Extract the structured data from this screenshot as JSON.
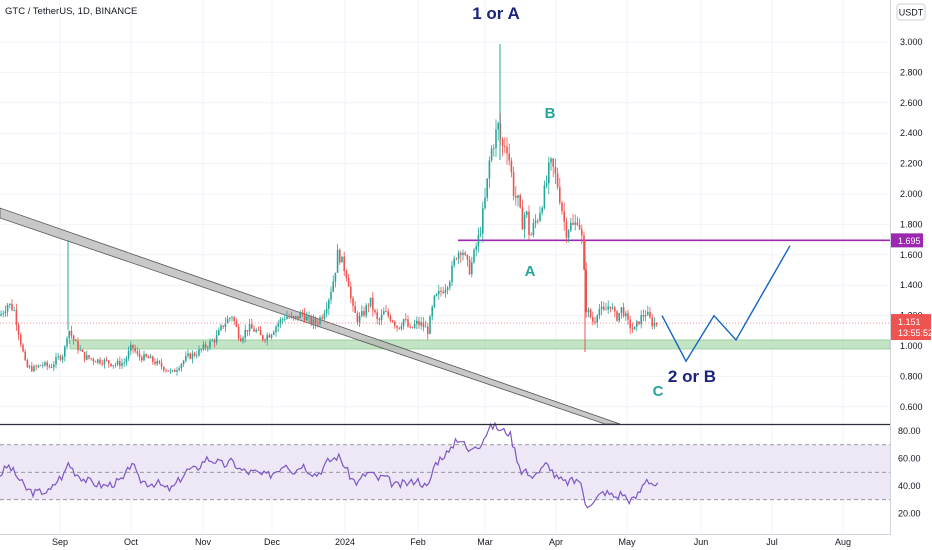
{
  "header": {
    "title": "GTC / TetherUS, 1D, BINANCE",
    "currency_button": "USDT"
  },
  "colors": {
    "up": "#26a69a",
    "down": "#ef5350",
    "level": "#9c27b0",
    "projection": "#1565c0",
    "zone": "#a5d6a7",
    "channel": "#b0b0b0",
    "rsi": "#7e57c2",
    "rsi_band": "#ede7f6",
    "label_dark": "#1a237e",
    "label_teal": "#26a69a"
  },
  "chart_data": [
    {
      "type": "candlestick",
      "title": "GTC / TetherUS, 1D, BINANCE",
      "ylim": [
        0.5,
        3.2
      ],
      "y_ticks": [
        "3.000",
        "2.800",
        "2.600",
        "2.400",
        "2.200",
        "2.000",
        "1.800",
        "1.600",
        "1.400",
        "1.200",
        "1.000",
        "0.800",
        "0.600"
      ],
      "x_ticks": [
        "Sep",
        "Oct",
        "Nov",
        "Dec",
        "2024",
        "Feb",
        "Mar",
        "Apr",
        "May",
        "Jun",
        "Jul",
        "Aug"
      ],
      "price_path": [
        [
          0,
          1.2
        ],
        [
          8,
          1.28
        ],
        [
          14,
          1.24
        ],
        [
          20,
          1.05
        ],
        [
          26,
          0.86
        ],
        [
          34,
          0.85
        ],
        [
          42,
          0.88
        ],
        [
          50,
          0.86
        ],
        [
          58,
          0.92
        ],
        [
          64,
          0.95
        ],
        [
          68,
          1.12
        ],
        [
          75,
          1.02
        ],
        [
          84,
          0.93
        ],
        [
          94,
          0.91
        ],
        [
          104,
          0.9
        ],
        [
          114,
          0.88
        ],
        [
          124,
          0.89
        ],
        [
          132,
          1.0
        ],
        [
          138,
          0.93
        ],
        [
          148,
          0.92
        ],
        [
          158,
          0.88
        ],
        [
          166,
          0.85
        ],
        [
          172,
          0.82
        ],
        [
          180,
          0.88
        ],
        [
          188,
          0.93
        ],
        [
          196,
          0.95
        ],
        [
          206,
          1.0
        ],
        [
          216,
          1.05
        ],
        [
          224,
          1.15
        ],
        [
          232,
          1.2
        ],
        [
          240,
          1.05
        ],
        [
          248,
          1.12
        ],
        [
          256,
          1.1
        ],
        [
          262,
          1.05
        ],
        [
          270,
          1.08
        ],
        [
          278,
          1.15
        ],
        [
          286,
          1.2
        ],
        [
          294,
          1.17
        ],
        [
          302,
          1.22
        ],
        [
          308,
          1.17
        ],
        [
          316,
          1.15
        ],
        [
          322,
          1.2
        ],
        [
          328,
          1.3
        ],
        [
          334,
          1.45
        ],
        [
          338,
          1.62
        ],
        [
          342,
          1.55
        ],
        [
          348,
          1.45
        ],
        [
          352,
          1.25
        ],
        [
          358,
          1.17
        ],
        [
          364,
          1.22
        ],
        [
          370,
          1.3
        ],
        [
          378,
          1.15
        ],
        [
          384,
          1.22
        ],
        [
          392,
          1.18
        ],
        [
          398,
          1.12
        ],
        [
          404,
          1.18
        ],
        [
          410,
          1.1
        ],
        [
          416,
          1.15
        ],
        [
          422,
          1.14
        ],
        [
          428,
          1.1
        ],
        [
          434,
          1.3
        ],
        [
          440,
          1.35
        ],
        [
          446,
          1.4
        ],
        [
          450,
          1.45
        ],
        [
          456,
          1.6
        ],
        [
          462,
          1.65
        ],
        [
          466,
          1.55
        ],
        [
          470,
          1.5
        ],
        [
          474,
          1.6
        ],
        [
          480,
          1.75
        ],
        [
          486,
          2.0
        ],
        [
          490,
          2.25
        ],
        [
          494,
          2.35
        ],
        [
          498,
          2.45
        ],
        [
          502,
          2.3
        ],
        [
          506,
          2.35
        ],
        [
          510,
          2.2
        ],
        [
          514,
          2.0
        ],
        [
          518,
          1.95
        ],
        [
          522,
          1.8
        ],
        [
          526,
          1.9
        ],
        [
          530,
          1.7
        ],
        [
          534,
          1.8
        ],
        [
          538,
          1.85
        ],
        [
          542,
          1.95
        ],
        [
          546,
          2.05
        ],
        [
          550,
          2.2
        ],
        [
          554,
          2.15
        ],
        [
          558,
          2.05
        ],
        [
          562,
          1.9
        ],
        [
          566,
          1.75
        ],
        [
          570,
          1.8
        ],
        [
          574,
          1.78
        ],
        [
          578,
          1.85
        ],
        [
          582,
          1.7
        ],
        [
          586,
          1.25
        ],
        [
          590,
          1.2
        ],
        [
          594,
          1.15
        ],
        [
          598,
          1.25
        ],
        [
          604,
          1.22
        ],
        [
          610,
          1.28
        ],
        [
          616,
          1.18
        ],
        [
          622,
          1.25
        ],
        [
          628,
          1.15
        ],
        [
          634,
          1.1
        ],
        [
          640,
          1.18
        ],
        [
          646,
          1.22
        ],
        [
          652,
          1.15
        ],
        [
          658,
          1.15
        ]
      ],
      "horizontal_levels": [
        {
          "value": 1.695,
          "label": "1.695"
        }
      ],
      "support_zone": [
        0.98,
        1.04
      ],
      "current_price": "1.151",
      "countdown": "13:55:52",
      "projection_path": [
        [
          662,
          1.2
        ],
        [
          686,
          0.9
        ],
        [
          714,
          1.2
        ],
        [
          736,
          1.04
        ],
        [
          790,
          1.66
        ]
      ],
      "annotations": [
        {
          "text": "1 or A",
          "style": "dark"
        },
        {
          "text": "B",
          "style": "teal"
        },
        {
          "text": "A",
          "style": "teal"
        },
        {
          "text": "2 or B",
          "style": "dark"
        },
        {
          "text": "C",
          "style": "teal"
        }
      ]
    },
    {
      "type": "line",
      "ylim": [
        16,
        88
      ],
      "y_ticks": [
        "80.00",
        "60.00",
        "40.00",
        "20.00"
      ],
      "band": [
        30,
        70
      ],
      "midline": 50,
      "rsi_path": [
        [
          0,
          48
        ],
        [
          8,
          55
        ],
        [
          14,
          50
        ],
        [
          20,
          44
        ],
        [
          26,
          38
        ],
        [
          34,
          35
        ],
        [
          42,
          36
        ],
        [
          50,
          36
        ],
        [
          58,
          45
        ],
        [
          64,
          48
        ],
        [
          68,
          57
        ],
        [
          75,
          50
        ],
        [
          84,
          45
        ],
        [
          94,
          42
        ],
        [
          104,
          40
        ],
        [
          114,
          42
        ],
        [
          124,
          45
        ],
        [
          132,
          58
        ],
        [
          138,
          45
        ],
        [
          148,
          42
        ],
        [
          158,
          42
        ],
        [
          166,
          38
        ],
        [
          172,
          38
        ],
        [
          180,
          45
        ],
        [
          188,
          52
        ],
        [
          196,
          52
        ],
        [
          206,
          60
        ],
        [
          216,
          58
        ],
        [
          224,
          55
        ],
        [
          232,
          58
        ],
        [
          240,
          52
        ],
        [
          248,
          50
        ],
        [
          256,
          50
        ],
        [
          262,
          48
        ],
        [
          270,
          48
        ],
        [
          278,
          52
        ],
        [
          286,
          57
        ],
        [
          294,
          50
        ],
        [
          302,
          56
        ],
        [
          308,
          52
        ],
        [
          316,
          48
        ],
        [
          322,
          52
        ],
        [
          328,
          58
        ],
        [
          334,
          60
        ],
        [
          338,
          62
        ],
        [
          342,
          58
        ],
        [
          348,
          50
        ],
        [
          352,
          45
        ],
        [
          358,
          42
        ],
        [
          364,
          48
        ],
        [
          370,
          50
        ],
        [
          378,
          45
        ],
        [
          384,
          47
        ],
        [
          392,
          42
        ],
        [
          398,
          40
        ],
        [
          404,
          42
        ],
        [
          410,
          42
        ],
        [
          416,
          45
        ],
        [
          422,
          42
        ],
        [
          428,
          38
        ],
        [
          434,
          55
        ],
        [
          440,
          60
        ],
        [
          446,
          64
        ],
        [
          450,
          64
        ],
        [
          456,
          75
        ],
        [
          462,
          73
        ],
        [
          466,
          68
        ],
        [
          470,
          64
        ],
        [
          474,
          70
        ],
        [
          480,
          70
        ],
        [
          486,
          78
        ],
        [
          490,
          82
        ],
        [
          494,
          84
        ],
        [
          498,
          82
        ],
        [
          502,
          80
        ],
        [
          506,
          80
        ],
        [
          510,
          78
        ],
        [
          514,
          68
        ],
        [
          518,
          58
        ],
        [
          522,
          50
        ],
        [
          526,
          52
        ],
        [
          530,
          45
        ],
        [
          534,
          50
        ],
        [
          538,
          50
        ],
        [
          542,
          52
        ],
        [
          546,
          56
        ],
        [
          550,
          54
        ],
        [
          554,
          48
        ],
        [
          558,
          45
        ],
        [
          562,
          44
        ],
        [
          566,
          42
        ],
        [
          570,
          44
        ],
        [
          574,
          43
        ],
        [
          578,
          46
        ],
        [
          582,
          38
        ],
        [
          586,
          26
        ],
        [
          590,
          28
        ],
        [
          594,
          28
        ],
        [
          598,
          32
        ],
        [
          604,
          36
        ],
        [
          610,
          34
        ],
        [
          616,
          32
        ],
        [
          622,
          35
        ],
        [
          628,
          30
        ],
        [
          634,
          30
        ],
        [
          640,
          36
        ],
        [
          646,
          46
        ],
        [
          652,
          42
        ],
        [
          658,
          40
        ]
      ]
    }
  ]
}
